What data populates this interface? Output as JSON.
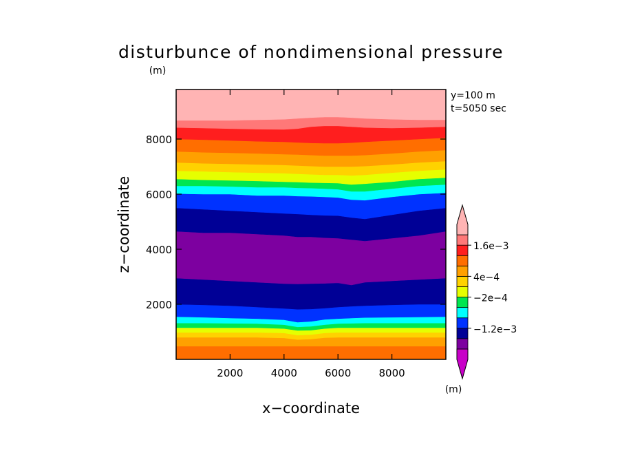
{
  "chart_data": {
    "type": "heatmap",
    "title": "disturbunce of nondimensional pressure",
    "title_unit": "(m)",
    "xlabel": "x−coordinate",
    "ylabel": "z−coordinate",
    "annotations": [
      "y=100 m",
      "t=5050 sec"
    ],
    "xlim": [
      0,
      10000
    ],
    "ylim": [
      0,
      9800
    ],
    "x_ticks": [
      2000,
      4000,
      6000,
      8000
    ],
    "y_ticks": [
      2000,
      4000,
      6000,
      8000
    ],
    "x_tick_labels": [
      "2000",
      "4000",
      "6000",
      "8000"
    ],
    "y_tick_labels": [
      "2000",
      "4000",
      "6000",
      "8000"
    ],
    "colorbar": {
      "colors": [
        "#c800c8",
        "#7d00a0",
        "#000096",
        "#0032ff",
        "#00ffff",
        "#00e650",
        "#e6ff00",
        "#ffd200",
        "#ffa000",
        "#ff6e00",
        "#ff1e1e",
        "#ff7878",
        "#ffb4b4"
      ],
      "labels": [
        "1.6e−3",
        "4e−4",
        "−2e−4",
        "−1.2e−3"
      ],
      "label_boundaries": [
        11,
        8,
        6,
        3
      ],
      "extend": "both",
      "unit": "(m)"
    },
    "band_colors": [
      "#ff6e00",
      "#ffa000",
      "#ffd200",
      "#e6ff00",
      "#00e650",
      "#00ffff",
      "#0032ff",
      "#000096",
      "#7d00a0",
      "#000096",
      "#0032ff",
      "#00ffff",
      "#00e650",
      "#e6ff00",
      "#ffd200",
      "#ffa000",
      "#ff6e00",
      "#ff1e1e",
      "#ff7878",
      "#ffb4b4"
    ],
    "contour_x": [
      0,
      1000,
      2000,
      3000,
      4000,
      4500,
      5000,
      5500,
      6000,
      6500,
      7000,
      8000,
      9000,
      10000
    ],
    "contour_levels_z": [
      [
        480,
        480,
        480,
        480,
        480,
        480,
        480,
        480,
        480,
        480,
        480,
        480,
        480,
        480
      ],
      [
        800,
        800,
        800,
        800,
        780,
        720,
        740,
        790,
        800,
        800,
        800,
        800,
        800,
        800
      ],
      [
        980,
        980,
        980,
        980,
        960,
        880,
        900,
        960,
        980,
        980,
        980,
        980,
        980,
        980
      ],
      [
        1150,
        1150,
        1150,
        1150,
        1120,
        1050,
        1060,
        1120,
        1150,
        1150,
        1150,
        1150,
        1150,
        1150
      ],
      [
        1320,
        1320,
        1310,
        1300,
        1260,
        1180,
        1200,
        1260,
        1300,
        1310,
        1320,
        1320,
        1320,
        1320
      ],
      [
        1550,
        1530,
        1500,
        1480,
        1440,
        1350,
        1380,
        1450,
        1480,
        1500,
        1520,
        1530,
        1540,
        1550
      ],
      [
        2000,
        1980,
        1950,
        1900,
        1850,
        1820,
        1830,
        1860,
        1900,
        1930,
        1950,
        1980,
        2000,
        2000
      ],
      [
        2950,
        2900,
        2850,
        2800,
        2750,
        2740,
        2750,
        2760,
        2780,
        2700,
        2800,
        2850,
        2900,
        2950
      ],
      [
        4650,
        4600,
        4600,
        4550,
        4500,
        4450,
        4450,
        4420,
        4400,
        4350,
        4300,
        4400,
        4500,
        4650
      ],
      [
        5500,
        5450,
        5400,
        5350,
        5300,
        5280,
        5250,
        5230,
        5220,
        5150,
        5100,
        5250,
        5400,
        5500
      ],
      [
        6020,
        6000,
        6000,
        5950,
        5950,
        5930,
        5920,
        5900,
        5880,
        5800,
        5780,
        5900,
        6000,
        6050
      ],
      [
        6300,
        6300,
        6280,
        6250,
        6250,
        6230,
        6220,
        6200,
        6180,
        6100,
        6100,
        6200,
        6300,
        6350
      ],
      [
        6550,
        6520,
        6500,
        6480,
        6450,
        6440,
        6420,
        6410,
        6400,
        6350,
        6380,
        6450,
        6550,
        6600
      ],
      [
        6850,
        6830,
        6800,
        6780,
        6760,
        6740,
        6720,
        6700,
        6700,
        6680,
        6700,
        6780,
        6850,
        6900
      ],
      [
        7150,
        7120,
        7100,
        7080,
        7060,
        7040,
        7020,
        7000,
        7000,
        7000,
        7020,
        7080,
        7150,
        7200
      ],
      [
        7550,
        7520,
        7500,
        7480,
        7450,
        7440,
        7420,
        7400,
        7400,
        7400,
        7420,
        7480,
        7550,
        7600
      ],
      [
        8000,
        7980,
        7950,
        7920,
        7900,
        7880,
        7860,
        7850,
        7850,
        7870,
        7900,
        7950,
        8000,
        8050
      ],
      [
        8420,
        8400,
        8380,
        8360,
        8350,
        8380,
        8450,
        8480,
        8480,
        8450,
        8420,
        8400,
        8420,
        8450
      ],
      [
        8680,
        8680,
        8680,
        8700,
        8720,
        8750,
        8780,
        8800,
        8800,
        8780,
        8750,
        8720,
        8700,
        8700
      ]
    ]
  }
}
